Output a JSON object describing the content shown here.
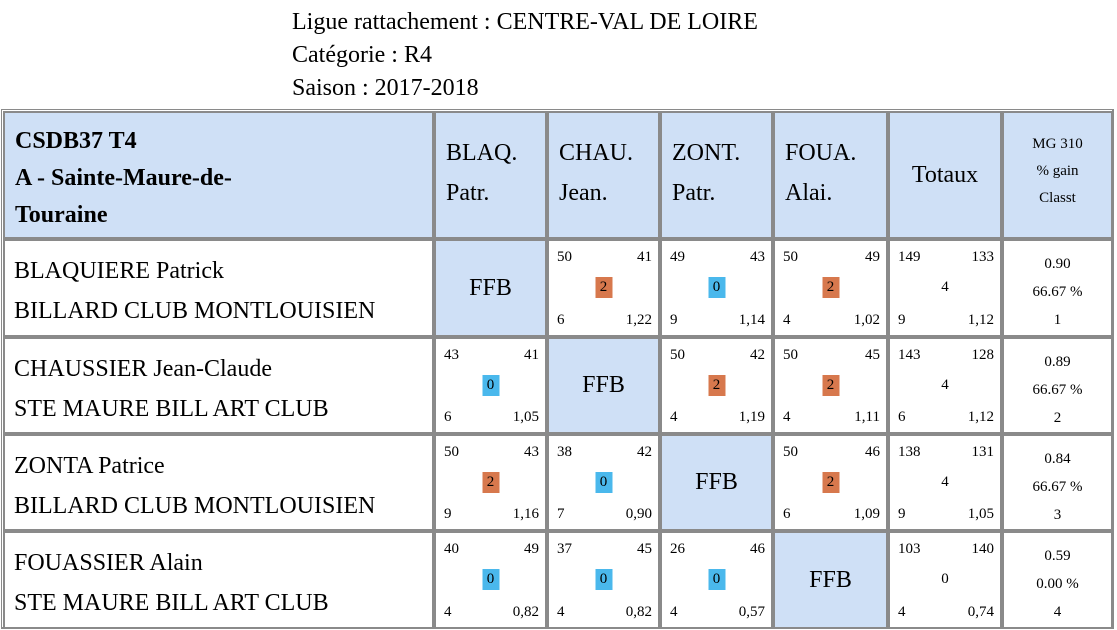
{
  "header": {
    "ligue": "Ligue rattachement : CENTRE-VAL DE LOIRE",
    "categorie": "Catégorie : R4",
    "saison": "Saison : 2017-2018"
  },
  "table": {
    "title_line1": "CSDB37 T4",
    "title_line2": "A - Sainte-Maure-de-",
    "title_line3": "Touraine",
    "columns": [
      {
        "abbr": "BLAQ.",
        "first": "Patr."
      },
      {
        "abbr": "CHAU.",
        "first": "Jean."
      },
      {
        "abbr": "ZONT.",
        "first": "Patr."
      },
      {
        "abbr": "FOUA.",
        "first": "Alai."
      }
    ],
    "totaux_label": "Totaux",
    "mg_label1": "MG 310",
    "mg_label2": "% gain",
    "mg_label3": "Classt",
    "ffb_label": "FFB",
    "rows": [
      {
        "name": "BLAQUIERE Patrick",
        "club": "BILLARD CLUB MONTLOUISIEN",
        "matches": [
          null,
          {
            "pts": "50",
            "opp": "41",
            "result": "2",
            "reprises": "6",
            "avg": "1,22"
          },
          {
            "pts": "49",
            "opp": "43",
            "result": "0",
            "reprises": "9",
            "avg": "1,14"
          },
          {
            "pts": "50",
            "opp": "49",
            "result": "2",
            "reprises": "4",
            "avg": "1,02"
          }
        ],
        "totals": {
          "pts": "149",
          "opp": "133",
          "mid": "4",
          "reprises": "9",
          "avg": "1,12"
        },
        "mg": "0.90",
        "pct": "66.67 %",
        "rank": "1"
      },
      {
        "name": "CHAUSSIER Jean-Claude",
        "club": "STE MAURE BILL ART CLUB",
        "matches": [
          {
            "pts": "43",
            "opp": "41",
            "result": "0",
            "reprises": "6",
            "avg": "1,05"
          },
          null,
          {
            "pts": "50",
            "opp": "42",
            "result": "2",
            "reprises": "4",
            "avg": "1,19"
          },
          {
            "pts": "50",
            "opp": "45",
            "result": "2",
            "reprises": "4",
            "avg": "1,11"
          }
        ],
        "totals": {
          "pts": "143",
          "opp": "128",
          "mid": "4",
          "reprises": "6",
          "avg": "1,12"
        },
        "mg": "0.89",
        "pct": "66.67 %",
        "rank": "2"
      },
      {
        "name": "ZONTA Patrice",
        "club": "BILLARD CLUB MONTLOUISIEN",
        "matches": [
          {
            "pts": "50",
            "opp": "43",
            "result": "2",
            "reprises": "9",
            "avg": "1,16"
          },
          {
            "pts": "38",
            "opp": "42",
            "result": "0",
            "reprises": "7",
            "avg": "0,90"
          },
          null,
          {
            "pts": "50",
            "opp": "46",
            "result": "2",
            "reprises": "6",
            "avg": "1,09"
          }
        ],
        "totals": {
          "pts": "138",
          "opp": "131",
          "mid": "4",
          "reprises": "9",
          "avg": "1,05"
        },
        "mg": "0.84",
        "pct": "66.67 %",
        "rank": "3"
      },
      {
        "name": "FOUASSIER Alain",
        "club": "STE MAURE BILL ART CLUB",
        "matches": [
          {
            "pts": "40",
            "opp": "49",
            "result": "0",
            "reprises": "4",
            "avg": "0,82"
          },
          {
            "pts": "37",
            "opp": "45",
            "result": "0",
            "reprises": "4",
            "avg": "0,82"
          },
          {
            "pts": "26",
            "opp": "46",
            "result": "0",
            "reprises": "4",
            "avg": "0,57"
          },
          null
        ],
        "totals": {
          "pts": "103",
          "opp": "140",
          "mid": "0",
          "reprises": "4",
          "avg": "0,74"
        },
        "mg": "0.59",
        "pct": "0.00 %",
        "rank": "4"
      }
    ]
  },
  "colors": {
    "header_blue": "#cfe0f6",
    "win_badge": "#d7784d",
    "lose_badge": "#4ab8ec",
    "border": "#8a8a8a"
  }
}
